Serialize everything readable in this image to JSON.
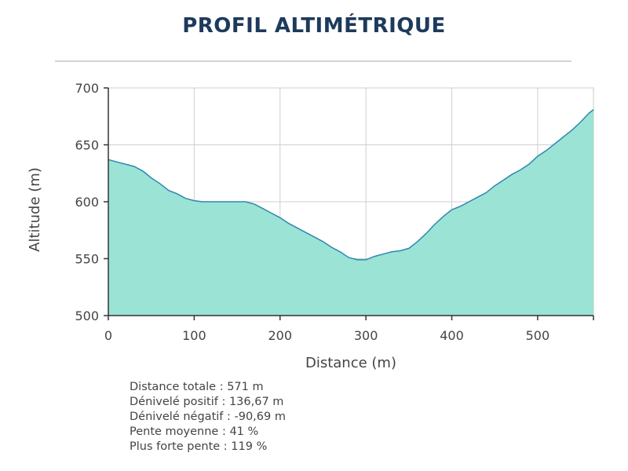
{
  "title": "PROFIL ALTIMÉTRIQUE",
  "chart_data": {
    "type": "area",
    "xlabel": "Distance (m)",
    "ylabel": "Altitude (m)",
    "xlim": [
      0,
      565
    ],
    "ylim": [
      500,
      700
    ],
    "x_ticks": [
      0,
      100,
      200,
      300,
      400,
      500
    ],
    "y_ticks": [
      500,
      550,
      600,
      650,
      700
    ],
    "grid": true,
    "fill_color": "#9be3d4",
    "line_color": "#2f86b2",
    "series": [
      {
        "x": [
          0,
          10,
          20,
          30,
          40,
          50,
          60,
          70,
          80,
          90,
          100,
          110,
          120,
          130,
          140,
          150,
          160,
          170,
          180,
          190,
          200,
          210,
          220,
          230,
          240,
          250,
          260,
          270,
          280,
          290,
          300,
          310,
          320,
          330,
          340,
          350,
          360,
          370,
          380,
          390,
          400,
          410,
          420,
          430,
          440,
          450,
          460,
          470,
          480,
          490,
          500,
          510,
          520,
          530,
          540,
          550,
          560,
          565
        ],
        "y": [
          637,
          635,
          633,
          631,
          627,
          621,
          616,
          610,
          607,
          603,
          601,
          600,
          600,
          600,
          600,
          600,
          600,
          598,
          594,
          590,
          586,
          581,
          577,
          573,
          569,
          565,
          560,
          556,
          551,
          549,
          549,
          552,
          554,
          556,
          557,
          559,
          565,
          572,
          580,
          587,
          593,
          596,
          600,
          604,
          608,
          614,
          619,
          624,
          628,
          633,
          640,
          645,
          651,
          657,
          663,
          670,
          678,
          681
        ]
      }
    ]
  },
  "stats": {
    "distance_totale": "Distance totale : 571 m",
    "denivele_positif": "Dénivelé positif : 136,67 m",
    "denivele_negatif": "Dénivelé négatif : -90,69 m",
    "pente_moyenne": "Pente moyenne : 41 %",
    "plus_forte_pente": "Plus forte pente : 119 %"
  }
}
